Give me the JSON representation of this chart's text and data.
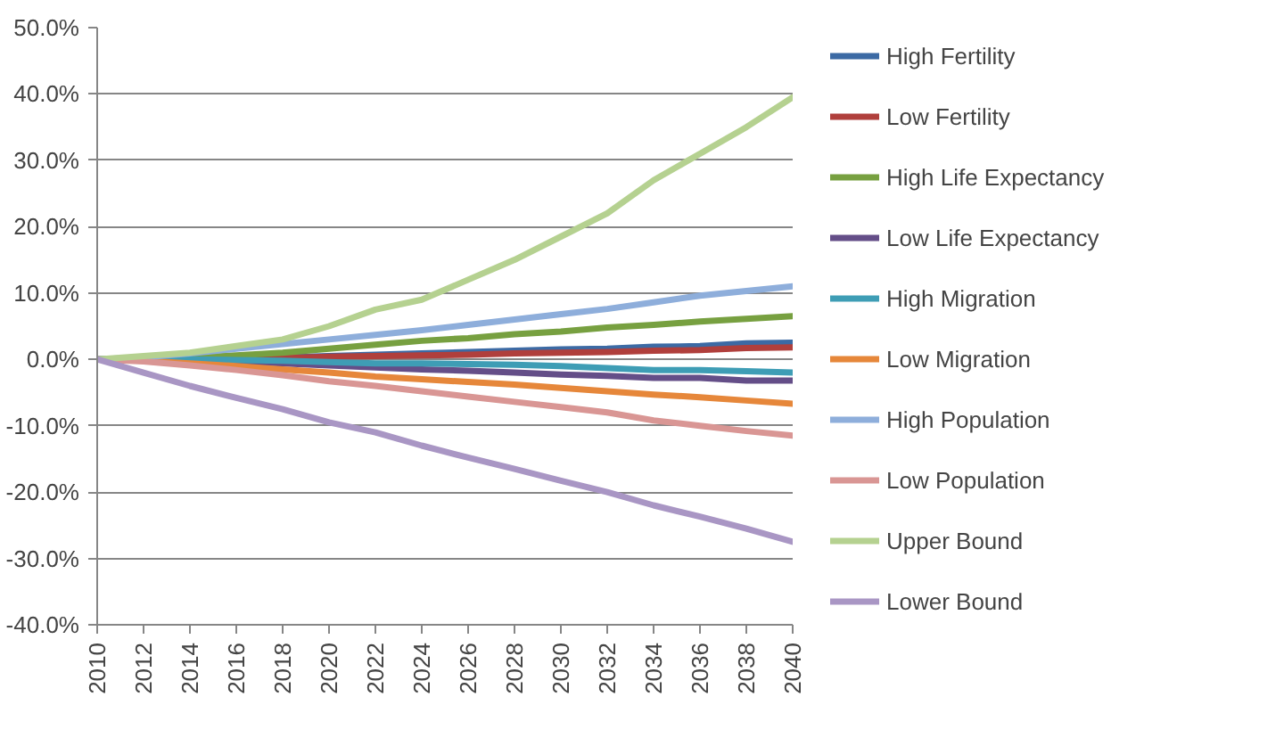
{
  "chart_data": {
    "type": "line",
    "x": [
      2010,
      2012,
      2014,
      2016,
      2018,
      2020,
      2022,
      2024,
      2026,
      2028,
      2030,
      2032,
      2034,
      2036,
      2038,
      2040
    ],
    "series": [
      {
        "name": "High Fertility",
        "color": "#3c6aa4",
        "values": [
          0,
          0,
          0.1,
          0.2,
          0.3,
          0.5,
          0.7,
          0.9,
          1.1,
          1.3,
          1.5,
          1.6,
          1.9,
          2.0,
          2.4,
          2.5
        ]
      },
      {
        "name": "Low Fertility",
        "color": "#b03f3c",
        "values": [
          0,
          0,
          0.1,
          0.2,
          0.2,
          0.4,
          0.5,
          0.6,
          0.7,
          0.9,
          1.0,
          1.1,
          1.3,
          1.4,
          1.7,
          1.8
        ]
      },
      {
        "name": "High Life Expectancy",
        "color": "#77a040",
        "values": [
          0,
          0.1,
          0.3,
          0.6,
          1,
          1.6,
          2.2,
          2.8,
          3.2,
          3.8,
          4.2,
          4.8,
          5.2,
          5.7,
          6.1,
          6.5
        ]
      },
      {
        "name": "Low Life Expectancy",
        "color": "#644e88",
        "values": [
          0,
          0,
          -0.1,
          -0.3,
          -0.6,
          -0.9,
          -1.2,
          -1.5,
          -1.7,
          -2,
          -2.3,
          -2.5,
          -2.8,
          -2.8,
          -3.2,
          -3.2
        ]
      },
      {
        "name": "High Migration",
        "color": "#3e9db5",
        "values": [
          0,
          0,
          0,
          -0.1,
          -0.2,
          -0.4,
          -0.6,
          -0.6,
          -0.7,
          -0.8,
          -1.0,
          -1.3,
          -1.6,
          -1.6,
          -1.8,
          -2.0
        ]
      },
      {
        "name": "Low Migration",
        "color": "#e6873a",
        "values": [
          0,
          -0.2,
          -0.6,
          -1,
          -1.5,
          -2,
          -2.6,
          -3,
          -3.4,
          -3.8,
          -4.3,
          -4.8,
          -5.3,
          -5.7,
          -6.2,
          -6.7
        ]
      },
      {
        "name": "High Population",
        "color": "#8eaedb",
        "values": [
          0,
          0.3,
          0.9,
          1.6,
          2.3,
          3.0,
          3.7,
          4.4,
          5.2,
          6,
          6.8,
          7.6,
          8.6,
          9.6,
          10.3,
          11
        ]
      },
      {
        "name": "Low Population",
        "color": "#d99694",
        "values": [
          0,
          -0.3,
          -0.9,
          -1.6,
          -2.4,
          -3.3,
          -4,
          -4.8,
          -5.6,
          -6.4,
          -7.2,
          -8,
          -9.2,
          -10,
          -10.8,
          -11.5
        ]
      },
      {
        "name": "Upper Bound",
        "color": "#b5d190",
        "values": [
          0,
          0.5,
          1,
          2,
          3,
          5,
          7.5,
          9,
          12,
          15,
          18.5,
          22,
          27,
          31,
          35,
          39.5
        ]
      },
      {
        "name": "Lower Bound",
        "color": "#a996c4",
        "values": [
          0,
          -2,
          -4,
          -5.8,
          -7.5,
          -9.5,
          -11,
          -13,
          -14.8,
          -16.5,
          -18.3,
          -20,
          -22,
          -23.7,
          -25.5,
          -27.5
        ]
      }
    ],
    "xlim": [
      2010,
      2040
    ],
    "xticks": [
      2010,
      2012,
      2014,
      2016,
      2018,
      2020,
      2022,
      2024,
      2026,
      2028,
      2030,
      2032,
      2034,
      2036,
      2038,
      2040
    ],
    "ylim": [
      -40,
      50
    ],
    "yticks": [
      {
        "value": -40,
        "label": "-40.0%"
      },
      {
        "value": -30,
        "label": "-30.0%"
      },
      {
        "value": -20,
        "label": "-20.0%"
      },
      {
        "value": -10,
        "label": "-10.0%"
      },
      {
        "value": 0,
        "label": "0.0%"
      },
      {
        "value": 10,
        "label": "10.0%"
      },
      {
        "value": 20,
        "label": "20.0%"
      },
      {
        "value": 30,
        "label": "30.0%"
      },
      {
        "value": 40,
        "label": "40.0%"
      },
      {
        "value": 50,
        "label": "50.0%"
      }
    ],
    "grid": "y",
    "legend": "right",
    "marker": "none",
    "line_style": "solid"
  }
}
